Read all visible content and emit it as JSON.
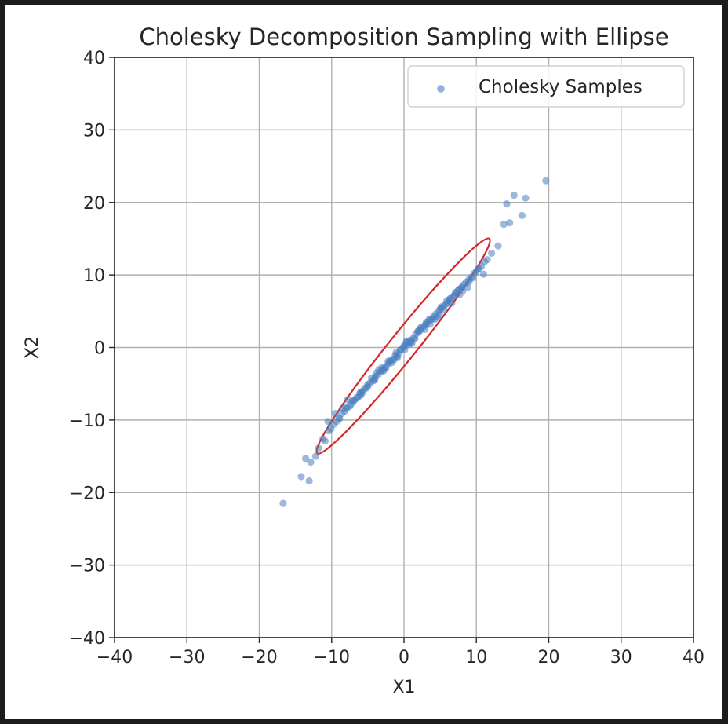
{
  "chart_data": {
    "type": "scatter",
    "title": "Cholesky Decomposition Sampling with Ellipse",
    "xlabel": "X1",
    "ylabel": "X2",
    "xlim": [
      -40,
      40
    ],
    "ylim": [
      -40,
      40
    ],
    "xticks": [
      -40,
      -30,
      -20,
      -10,
      0,
      10,
      20,
      30,
      40
    ],
    "yticks": [
      -40,
      -30,
      -20,
      -10,
      0,
      10,
      20,
      30,
      40
    ],
    "xtick_labels": [
      "−40",
      "−30",
      "−20",
      "−10",
      "0",
      "10",
      "20",
      "30",
      "40"
    ],
    "ytick_labels": [
      "−40",
      "−30",
      "−20",
      "−10",
      "0",
      "10",
      "20",
      "30",
      "40"
    ],
    "grid": true,
    "legend_position": "top-right",
    "series": [
      {
        "name": "Cholesky Samples",
        "color": "#4a7fbf",
        "x": [
          -16.7,
          -14.2,
          -13.6,
          -12.9,
          -13.1,
          -12.2,
          -11.8,
          -11.2,
          -10.9,
          -10.4,
          -10.1,
          -9.7,
          -9.3,
          -8.9,
          -8.6,
          -8.2,
          -7.9,
          -7.5,
          -7.1,
          -6.8,
          -6.4,
          -6.1,
          -5.7,
          -5.4,
          -5.0,
          -4.7,
          -4.3,
          -4.0,
          -3.6,
          -3.3,
          -2.9,
          -2.6,
          -2.2,
          -1.9,
          -1.5,
          -1.2,
          -0.8,
          -0.5,
          -0.1,
          0.2,
          0.6,
          0.9,
          1.3,
          1.6,
          2.0,
          2.3,
          2.7,
          3.0,
          3.4,
          3.7,
          4.1,
          4.4,
          4.8,
          5.1,
          5.5,
          5.8,
          6.2,
          6.5,
          6.9,
          7.2,
          7.6,
          7.9,
          8.3,
          8.6,
          9.0,
          9.3,
          9.7,
          10.0,
          10.4,
          10.7,
          11.1,
          11.5,
          12.1,
          13.0,
          13.8,
          14.2,
          14.6,
          15.2,
          16.3,
          16.8,
          19.6,
          -9.0,
          -8.0,
          -7.0,
          -6.0,
          -5.0,
          -4.0,
          -3.0,
          -2.0,
          -1.0,
          0.0,
          1.0,
          2.0,
          3.0,
          4.0,
          5.0,
          6.0,
          7.0,
          8.0,
          9.0,
          -8.5,
          -6.5,
          -4.5,
          -2.5,
          -0.5,
          1.5,
          3.5,
          5.5,
          7.5,
          9.5,
          -7.8,
          -5.2,
          -3.1,
          -1.4,
          0.7,
          2.4,
          4.6,
          6.3,
          8.1,
          -6.0,
          -3.8,
          -1.7,
          0.3,
          2.9,
          5.2,
          7.7,
          -4.1,
          -2.2,
          0.1,
          1.9,
          4.3,
          -10.5,
          10.2,
          11.0,
          -9.5,
          3.6,
          -0.9,
          2.2,
          8.8,
          -5.8,
          4.9,
          0.4,
          -2.8,
          6.6,
          -7.3,
          5.9,
          1.1,
          -1.1,
          3.1,
          -3.5,
          7.1
        ],
        "y": [
          -21.5,
          -17.8,
          -15.3,
          -15.8,
          -18.4,
          -15.0,
          -13.9,
          -12.6,
          -12.9,
          -11.5,
          -11.2,
          -10.6,
          -10.2,
          -9.8,
          -9.1,
          -8.8,
          -8.4,
          -8.1,
          -7.4,
          -7.2,
          -6.9,
          -6.3,
          -6.0,
          -5.6,
          -5.4,
          -4.9,
          -4.6,
          -4.0,
          -3.8,
          -3.4,
          -3.0,
          -2.7,
          -2.3,
          -1.8,
          -1.6,
          -1.1,
          -0.9,
          -0.4,
          0.0,
          0.3,
          0.7,
          1.0,
          1.3,
          1.8,
          2.1,
          2.4,
          2.9,
          3.1,
          3.6,
          3.8,
          4.3,
          4.6,
          5.0,
          5.4,
          5.7,
          6.0,
          6.5,
          6.8,
          7.1,
          7.5,
          8.0,
          8.2,
          8.7,
          9.0,
          9.4,
          9.7,
          10.2,
          10.5,
          10.9,
          11.2,
          11.8,
          12.1,
          13.0,
          14.0,
          17.0,
          19.8,
          17.2,
          21.0,
          18.2,
          20.6,
          23.0,
          -9.8,
          -8.3,
          -7.4,
          -6.2,
          -5.1,
          -4.3,
          -3.2,
          -2.0,
          -1.2,
          0.2,
          0.8,
          2.3,
          3.2,
          4.0,
          5.3,
          6.1,
          7.2,
          8.3,
          9.1,
          -8.4,
          -6.9,
          -4.2,
          -2.8,
          -0.3,
          1.2,
          3.9,
          5.2,
          7.9,
          9.6,
          -7.2,
          -5.6,
          -2.8,
          -1.7,
          0.4,
          2.8,
          4.2,
          6.7,
          7.8,
          -6.6,
          -3.5,
          -2.1,
          0.7,
          2.5,
          5.6,
          7.3,
          -4.5,
          -1.9,
          -0.3,
          2.2,
          3.9,
          -10.2,
          10.8,
          10.1,
          -9.1,
          3.2,
          -1.4,
          2.6,
          8.3,
          -6.3,
          4.5,
          0.9,
          -3.2,
          6.1,
          -7.8,
          6.4,
          0.6,
          -0.7,
          3.5,
          -3.1,
          7.6
        ]
      }
    ],
    "ellipse": {
      "color": "#d62728",
      "center": [
        0,
        0
      ],
      "endpoint_a": [
        -12.0,
        -14.6
      ],
      "endpoint_b": [
        11.8,
        15.0
      ],
      "minor_half_width": 1.85
    }
  }
}
